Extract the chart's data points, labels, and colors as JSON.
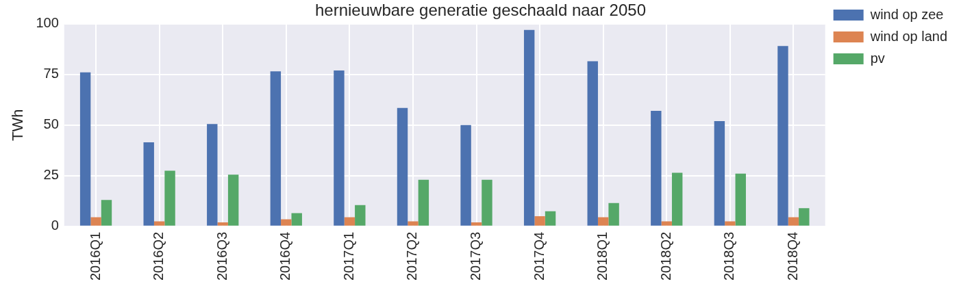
{
  "chart_data": {
    "type": "bar",
    "title": "hernieuwbare generatie geschaald naar 2050",
    "ylabel": "TWh",
    "categories": [
      "2016Q1",
      "2016Q2",
      "2016Q3",
      "2016Q4",
      "2017Q1",
      "2017Q2",
      "2017Q3",
      "2017Q4",
      "2018Q1",
      "2018Q2",
      "2018Q3",
      "2018Q4"
    ],
    "series": [
      {
        "name": "wind op zee",
        "color": "#4c72b0",
        "values": [
          76,
          41.5,
          50.5,
          76.5,
          77,
          58.5,
          50,
          97,
          81.5,
          57,
          52,
          89
        ]
      },
      {
        "name": "wind op land",
        "color": "#dd8452",
        "values": [
          4.5,
          2.5,
          2,
          3.5,
          4.5,
          2.5,
          2,
          5,
          4.5,
          2.5,
          2.5,
          4.5
        ]
      },
      {
        "name": "pv",
        "color": "#55a868",
        "values": [
          13,
          27.5,
          25.5,
          6.5,
          10.5,
          23,
          23,
          7.5,
          11.5,
          26.5,
          26,
          9
        ]
      }
    ],
    "ylim": [
      0,
      100
    ],
    "yticks": [
      0,
      25,
      50,
      75,
      100
    ],
    "grid": true,
    "legend": "top right"
  }
}
